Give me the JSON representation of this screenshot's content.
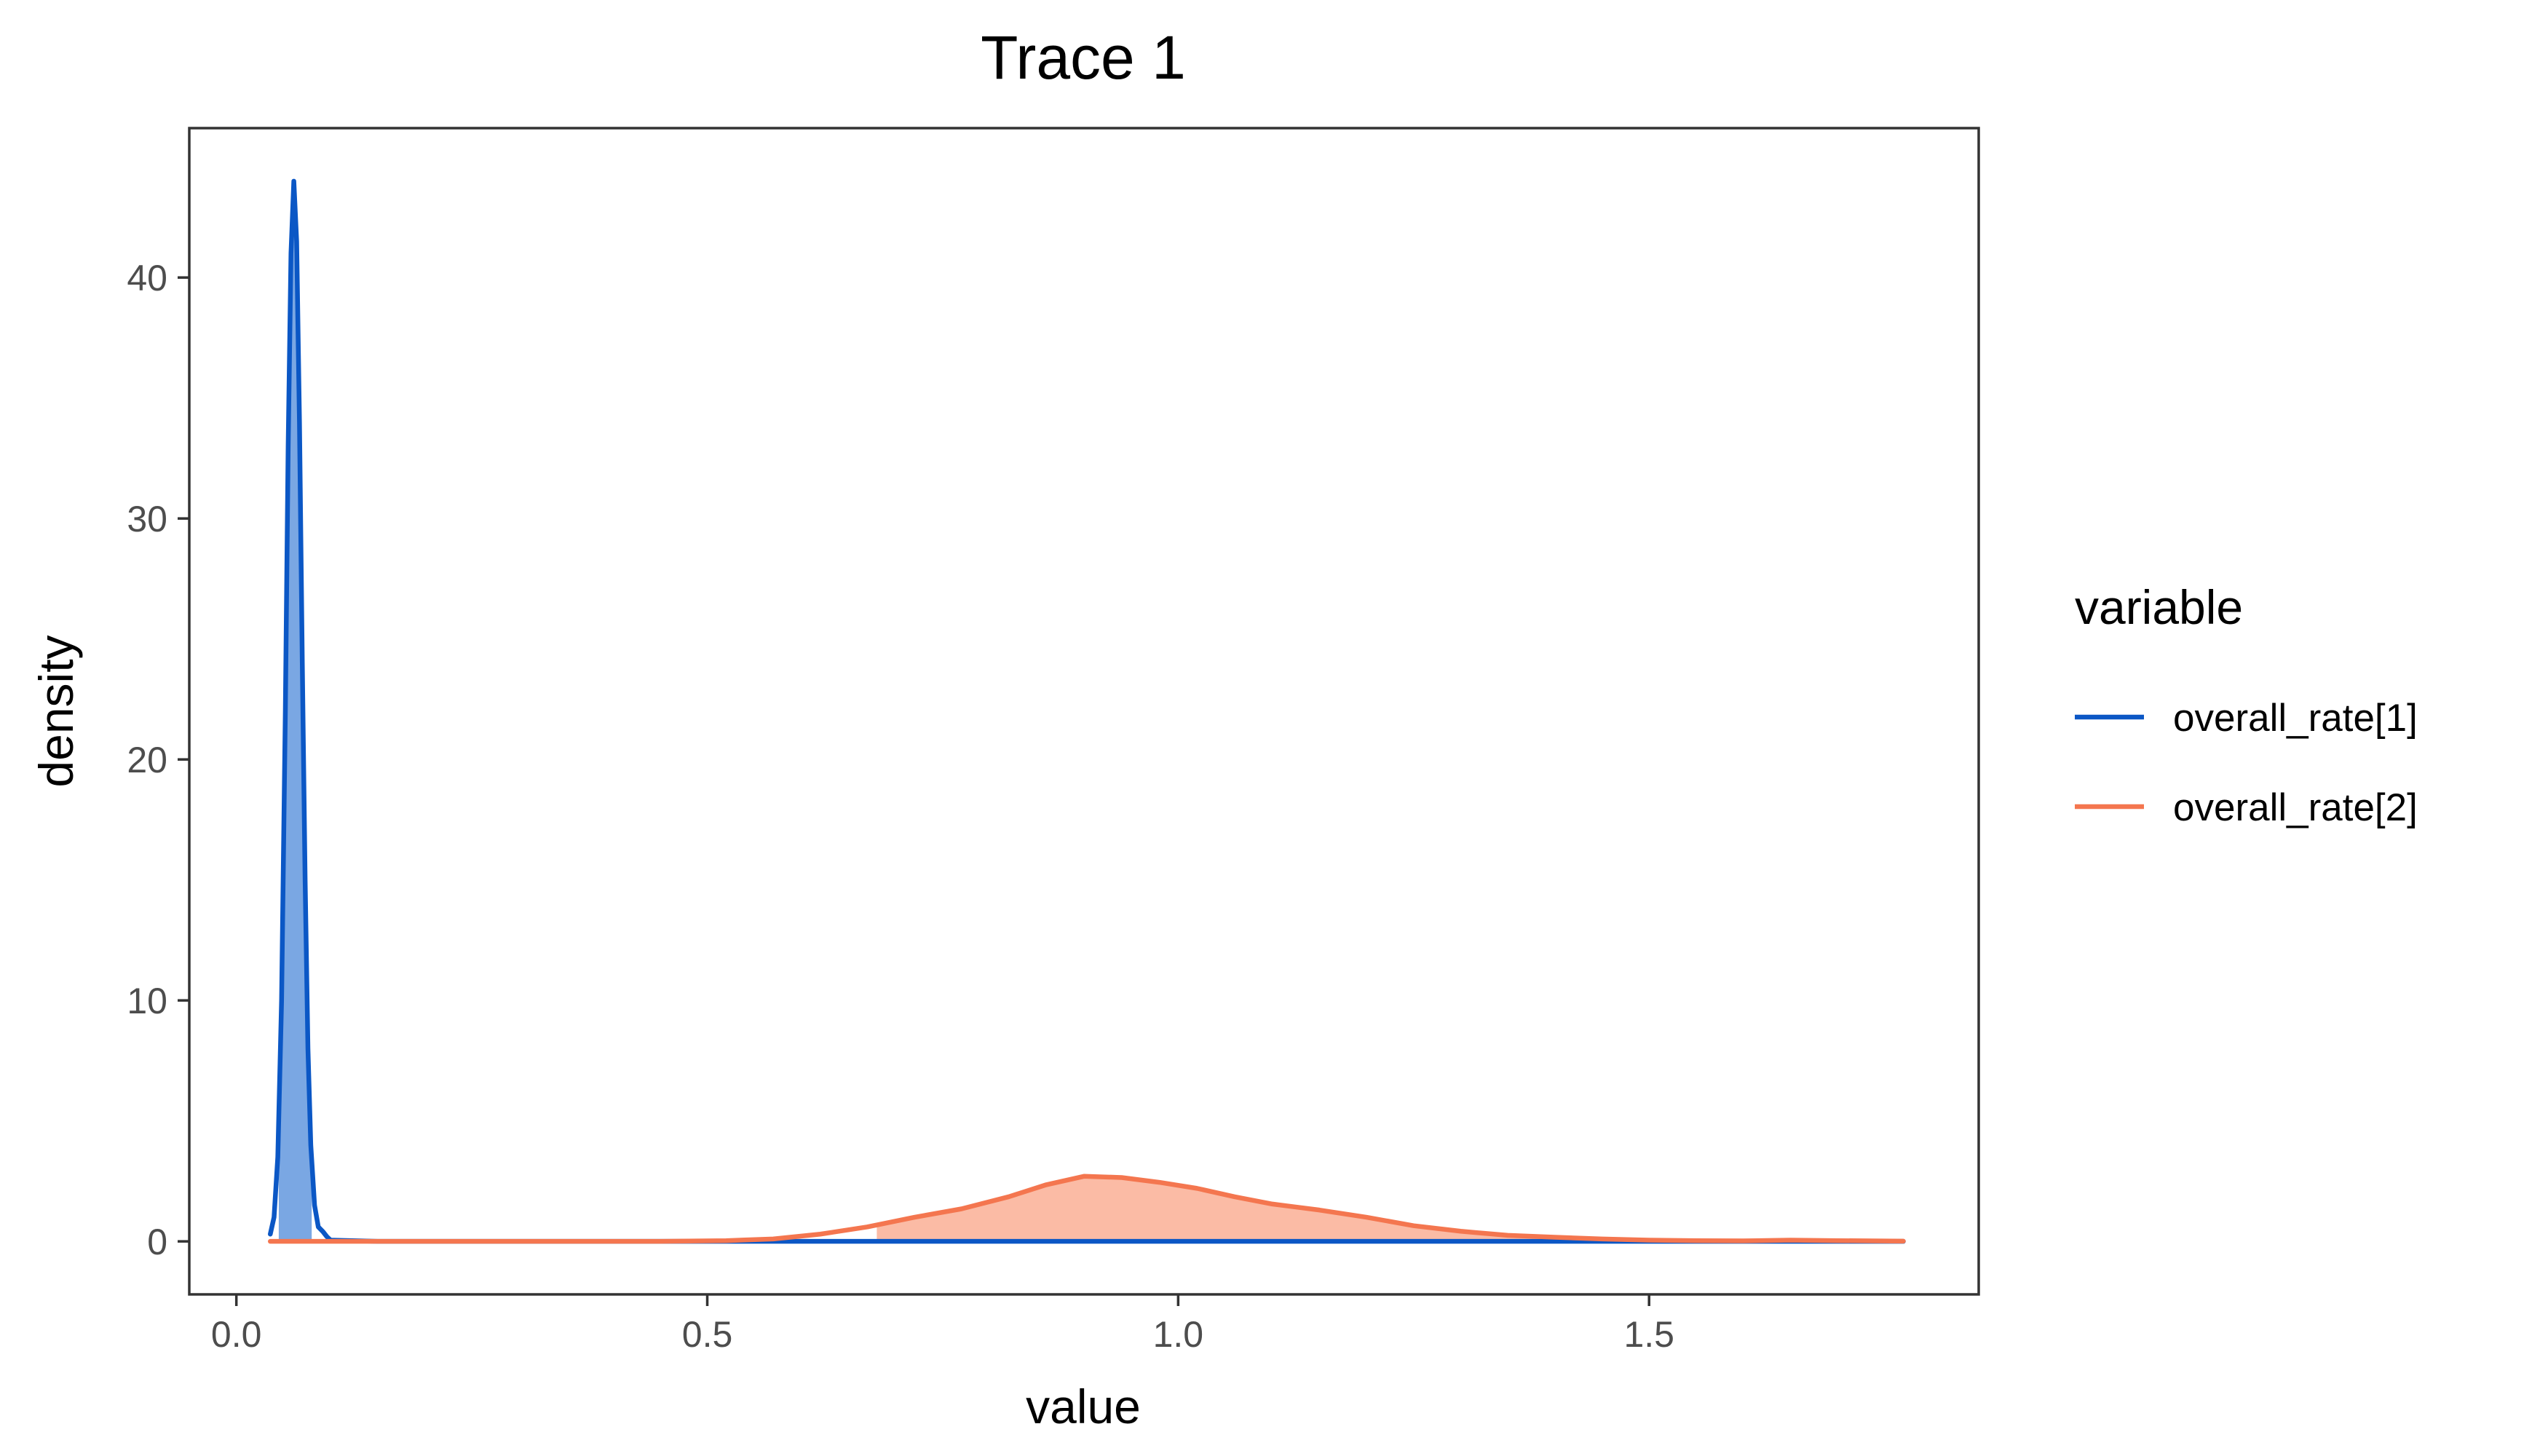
{
  "chart_data": {
    "type": "area",
    "title": "Trace 1",
    "xlabel": "value",
    "ylabel": "density",
    "xlim": [
      -0.05,
      1.85
    ],
    "ylim": [
      -2.2,
      46.2
    ],
    "x_ticks": [
      0.0,
      0.5,
      1.0,
      1.5
    ],
    "x_tick_labels": [
      "0.0",
      "0.5",
      "1.0",
      "1.5"
    ],
    "y_ticks": [
      0,
      10,
      20,
      30,
      40
    ],
    "y_tick_labels": [
      "0",
      "10",
      "20",
      "30",
      "40"
    ],
    "grid": false,
    "legend_title": "variable",
    "legend_position": "right",
    "series": [
      {
        "name": "overall_rate[1]",
        "color": "#0B57C5",
        "fill": "#7AA7E3",
        "shade_range": [
          0.045,
          0.08
        ],
        "points": [
          [
            0.036,
            0.3
          ],
          [
            0.04,
            1.0
          ],
          [
            0.044,
            3.5
          ],
          [
            0.048,
            10.0
          ],
          [
            0.052,
            22.0
          ],
          [
            0.055,
            33.0
          ],
          [
            0.058,
            41.0
          ],
          [
            0.061,
            44.0
          ],
          [
            0.064,
            41.5
          ],
          [
            0.067,
            34.0
          ],
          [
            0.07,
            24.0
          ],
          [
            0.073,
            15.0
          ],
          [
            0.076,
            8.0
          ],
          [
            0.079,
            4.0
          ],
          [
            0.083,
            1.5
          ],
          [
            0.087,
            0.6
          ],
          [
            0.092,
            0.4
          ],
          [
            0.096,
            0.2
          ],
          [
            0.1,
            0.05
          ],
          [
            0.15,
            0.0
          ],
          [
            0.5,
            0.0
          ],
          [
            1.0,
            0.0
          ],
          [
            1.5,
            0.0
          ],
          [
            1.77,
            0.0
          ]
        ]
      },
      {
        "name": "overall_rate[2]",
        "color": "#F4764F",
        "fill": "#FBBBA5",
        "shade_range": [
          0.68,
          1.77
        ],
        "points": [
          [
            0.036,
            0.0
          ],
          [
            0.3,
            0.0
          ],
          [
            0.45,
            0.0
          ],
          [
            0.52,
            0.03
          ],
          [
            0.57,
            0.1
          ],
          [
            0.62,
            0.3
          ],
          [
            0.67,
            0.6
          ],
          [
            0.72,
            1.0
          ],
          [
            0.77,
            1.35
          ],
          [
            0.82,
            1.85
          ],
          [
            0.86,
            2.35
          ],
          [
            0.9,
            2.7
          ],
          [
            0.94,
            2.65
          ],
          [
            0.98,
            2.45
          ],
          [
            1.02,
            2.2
          ],
          [
            1.06,
            1.85
          ],
          [
            1.1,
            1.55
          ],
          [
            1.15,
            1.3
          ],
          [
            1.2,
            1.0
          ],
          [
            1.25,
            0.65
          ],
          [
            1.3,
            0.42
          ],
          [
            1.35,
            0.25
          ],
          [
            1.4,
            0.17
          ],
          [
            1.45,
            0.1
          ],
          [
            1.5,
            0.05
          ],
          [
            1.55,
            0.03
          ],
          [
            1.6,
            0.02
          ],
          [
            1.65,
            0.05
          ],
          [
            1.7,
            0.03
          ],
          [
            1.77,
            0.01
          ]
        ]
      }
    ]
  }
}
